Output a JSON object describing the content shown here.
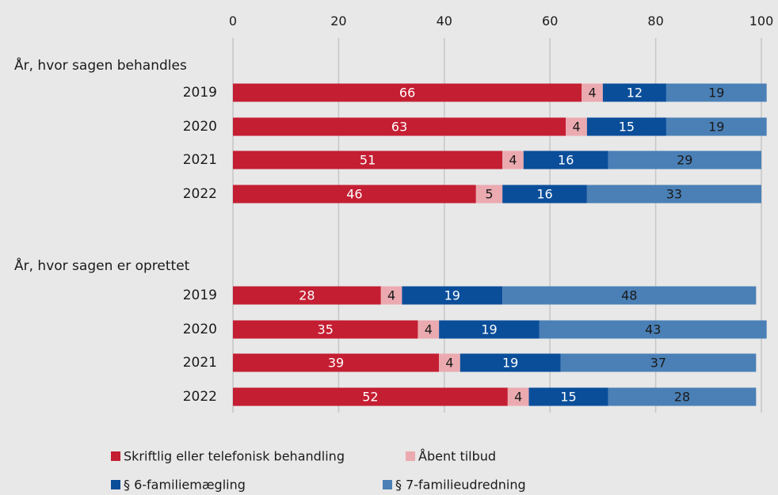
{
  "chart_data": {
    "type": "bar",
    "orientation": "horizontal",
    "stacked": true,
    "xlim": [
      0,
      100
    ],
    "xticks": [
      "0",
      "20",
      "40",
      "60",
      "80",
      "100"
    ],
    "grid": true,
    "legend_position": "bottom",
    "groups": [
      {
        "label": "År, hvor sagen behandles",
        "categories": [
          "2019",
          "2020",
          "2021",
          "2022"
        ],
        "series": [
          {
            "name": "Skriftlig eller telefonisk behandling",
            "values": [
              66,
              63,
              51,
              46
            ]
          },
          {
            "name": "Åbent tilbud",
            "values": [
              4,
              4,
              4,
              5
            ]
          },
          {
            "name": "§ 6-familiemægling",
            "values": [
              12,
              15,
              16,
              16
            ]
          },
          {
            "name": "§ 7-familieudredning",
            "values": [
              19,
              19,
              29,
              33
            ]
          }
        ]
      },
      {
        "label": "År, hvor sagen er oprettet",
        "categories": [
          "2019",
          "2020",
          "2021",
          "2022"
        ],
        "series": [
          {
            "name": "Skriftlig eller telefonisk behandling",
            "values": [
              28,
              35,
              39,
              52
            ]
          },
          {
            "name": "Åbent tilbud",
            "values": [
              4,
              4,
              4,
              4
            ]
          },
          {
            "name": "§ 6-familiemægling",
            "values": [
              19,
              19,
              19,
              15
            ]
          },
          {
            "name": "§ 7-familieudredning",
            "values": [
              48,
              43,
              37,
              28
            ]
          }
        ]
      }
    ],
    "series_colors": [
      "#c41e32",
      "#ebaab0",
      "#0a4e9a",
      "#4a80b6"
    ],
    "label_colors": [
      "#ffffff",
      "#1a1a1a",
      "#ffffff",
      "#1a1a1a"
    ]
  }
}
